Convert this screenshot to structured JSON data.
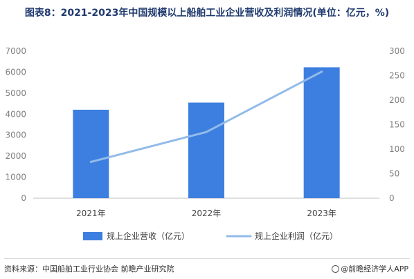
{
  "title": "图表8：2021-2023年中国规模以上船舶工业企业营收及利润情况(单位：亿元，%)",
  "source": "资料来源：中国船舶工业行业协会 前瞻产业研究院",
  "brand": "@前瞻经济学人APP",
  "colors": {
    "bar": "#3d7fe0",
    "line": "#93bbe9",
    "axis": "#bfbfbf",
    "tick": "#7f7f7f"
  },
  "chart_data": {
    "type": "bar",
    "categories": [
      "2021年",
      "2022年",
      "2023年"
    ],
    "series": [
      {
        "name": "规上企业营收（亿元）",
        "type": "bar",
        "axis": "left",
        "values": [
          4210,
          4550,
          6230
        ]
      },
      {
        "name": "规上企业利润（亿元）",
        "type": "line",
        "axis": "right",
        "values": [
          74,
          135,
          258
        ]
      }
    ],
    "y_left": {
      "min": 0,
      "max": 7000,
      "ticks": [
        0,
        1000,
        2000,
        3000,
        4000,
        5000,
        6000,
        7000
      ]
    },
    "y_right": {
      "min": 0,
      "max": 300,
      "ticks": [
        0,
        50,
        100,
        150,
        200,
        250,
        300
      ]
    },
    "legend_position": "bottom",
    "grid": false
  }
}
